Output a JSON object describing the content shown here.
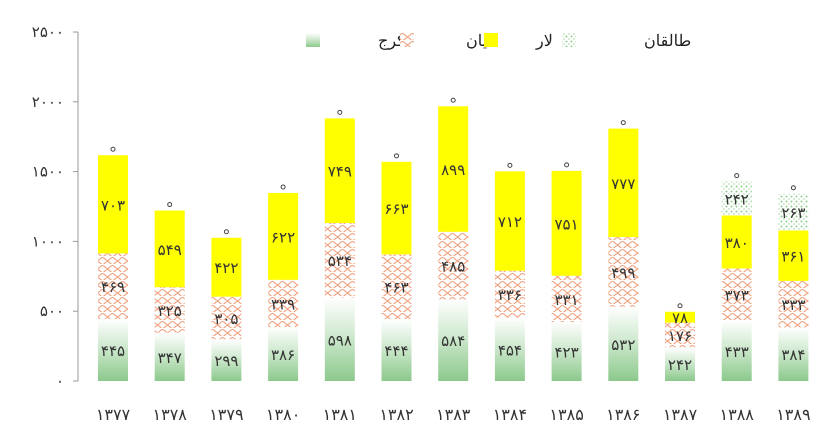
{
  "chart_data": {
    "type": "bar",
    "stacked": true,
    "categories": [
      "۱۳۷۷",
      "۱۳۷۸",
      "۱۳۷۹",
      "۱۳۸۰",
      "۱۳۸۱",
      "۱۳۸۲",
      "۱۳۸۳",
      "۱۳۸۴",
      "۱۳۸۵",
      "۱۳۸۶",
      "۱۳۸۷",
      "۱۳۸۸",
      "۱۳۸۹"
    ],
    "series": [
      {
        "name": "کرج",
        "color": "#8cc98c",
        "pattern": "gradient-green",
        "values": [
          445,
          347,
          299,
          386,
          598,
          444,
          584,
          454,
          423,
          532,
          242,
          433,
          384
        ],
        "labels": [
          "۴۴۵",
          "۳۴۷",
          "۲۹۹",
          "۳۸۶",
          "۵۹۸",
          "۴۴۴",
          "۵۸۴",
          "۴۵۴",
          "۴۲۳",
          "۵۳۲",
          "۲۴۲",
          "۴۳۳",
          "۳۸۴"
        ]
      },
      {
        "name": "لتیان",
        "color": "#f2a88a",
        "pattern": "wavy",
        "values": [
          469,
          325,
          305,
          339,
          534,
          463,
          485,
          336,
          331,
          499,
          176,
          373,
          333
        ],
        "labels": [
          "۴۶۹",
          "۳۲۵",
          "۳۰۵",
          "۳۳۹",
          "۵۳۴",
          "۴۶۳",
          "۴۸۵",
          "۳۳۶",
          "۳۳۱",
          "۴۹۹",
          "۱۷۶",
          "۳۷۳",
          "۳۳۳"
        ]
      },
      {
        "name": "لار",
        "color": "#ffff00",
        "pattern": "solid",
        "values": [
          703,
          549,
          422,
          622,
          749,
          663,
          899,
          712,
          751,
          777,
          78,
          380,
          361
        ],
        "labels": [
          "۷۰۳",
          "۵۴۹",
          "۴۲۲",
          "۶۲۲",
          "۷۴۹",
          "۶۶۳",
          "۸۹۹",
          "۷۱۲",
          "۷۵۱",
          "۷۷۷",
          "۷۸",
          "۳۸۰",
          "۳۶۱"
        ]
      },
      {
        "name": "طالقان",
        "color": "#a8d8a8",
        "pattern": "dotted",
        "values": [
          0,
          0,
          0,
          0,
          0,
          0,
          0,
          0,
          0,
          0,
          0,
          242,
          263
        ],
        "labels": [
          "",
          "",
          "",
          "",
          "",
          "",
          "",
          "",
          "",
          "",
          "",
          "۲۴۲",
          "۲۶۳"
        ]
      }
    ],
    "y_ticks": [
      0,
      500,
      1000,
      1500,
      2000,
      2500
    ],
    "y_tick_labels": [
      "۰",
      "۵۰۰",
      "۱۰۰۰",
      "۱۵۰۰",
      "۲۰۰۰",
      "۲۵۰۰"
    ],
    "ylim": [
      0,
      2500
    ],
    "title": "",
    "xlabel": "",
    "ylabel": "",
    "grid": false,
    "legend_position": "top-center",
    "legend_order": [
      "طالقان",
      "لار",
      "لتیان",
      "کرج"
    ]
  }
}
